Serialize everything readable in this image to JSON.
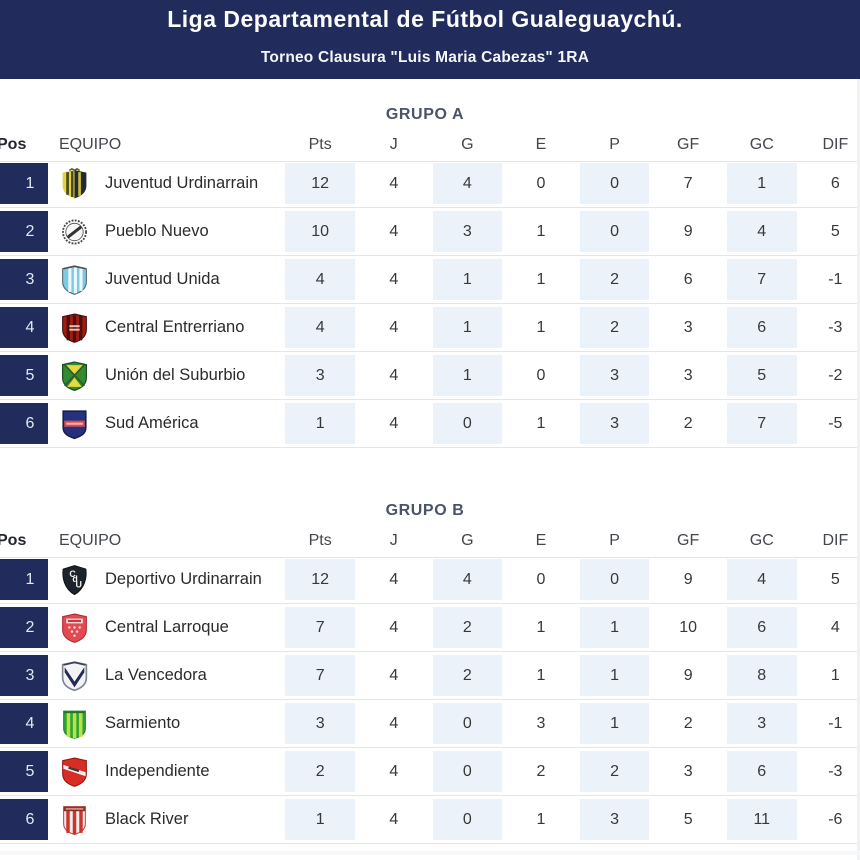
{
  "header": {
    "title": "Liga Departamental de Fútbol Gualeguaychú.",
    "subtitle": "Torneo Clausura \"Luis Maria Cabezas\" 1RA"
  },
  "columns": {
    "pos": "Pos",
    "equipo": "EQUIPO",
    "pts": "Pts",
    "j": "J",
    "g": "G",
    "e": "E",
    "p": "P",
    "gf": "GF",
    "gc": "GC",
    "dif": "DIF"
  },
  "colors": {
    "band_navy": "#212c5c",
    "pos_cell_navy": "#212c5c",
    "column_tint": "#ebf2f9",
    "hairline": "#e4e5e7",
    "group_title_text": "#4b5367"
  },
  "sections": [
    {
      "title": "GRUPO A",
      "rows": [
        {
          "pos": "1",
          "team": "Juventud Urdinarrain",
          "badge": "juventud-urdinarrain",
          "pts": "12",
          "j": "4",
          "g": "4",
          "e": "0",
          "p": "0",
          "gf": "7",
          "gc": "1",
          "dif": "6"
        },
        {
          "pos": "2",
          "team": "Pueblo Nuevo",
          "badge": "pueblo-nuevo",
          "pts": "10",
          "j": "4",
          "g": "3",
          "e": "1",
          "p": "0",
          "gf": "9",
          "gc": "4",
          "dif": "5"
        },
        {
          "pos": "3",
          "team": "Juventud Unida",
          "badge": "juventud-unida",
          "pts": "4",
          "j": "4",
          "g": "1",
          "e": "1",
          "p": "2",
          "gf": "6",
          "gc": "7",
          "dif": "-1"
        },
        {
          "pos": "4",
          "team": "Central Entrerriano",
          "badge": "central-entrerriano",
          "pts": "4",
          "j": "4",
          "g": "1",
          "e": "1",
          "p": "2",
          "gf": "3",
          "gc": "6",
          "dif": "-3"
        },
        {
          "pos": "5",
          "team": "Unión del Suburbio",
          "badge": "union-del-suburbio",
          "pts": "3",
          "j": "4",
          "g": "1",
          "e": "0",
          "p": "3",
          "gf": "3",
          "gc": "5",
          "dif": "-2"
        },
        {
          "pos": "6",
          "team": "Sud América",
          "badge": "sud-america",
          "pts": "1",
          "j": "4",
          "g": "0",
          "e": "1",
          "p": "3",
          "gf": "2",
          "gc": "7",
          "dif": "-5"
        }
      ]
    },
    {
      "title": "GRUPO B",
      "rows": [
        {
          "pos": "1",
          "team": "Deportivo Urdinarrain",
          "badge": "deportivo-urdinarrain",
          "pts": "12",
          "j": "4",
          "g": "4",
          "e": "0",
          "p": "0",
          "gf": "9",
          "gc": "4",
          "dif": "5"
        },
        {
          "pos": "2",
          "team": "Central Larroque",
          "badge": "central-larroque",
          "pts": "7",
          "j": "4",
          "g": "2",
          "e": "1",
          "p": "1",
          "gf": "10",
          "gc": "6",
          "dif": "4"
        },
        {
          "pos": "3",
          "team": "La Vencedora",
          "badge": "la-vencedora",
          "pts": "7",
          "j": "4",
          "g": "2",
          "e": "1",
          "p": "1",
          "gf": "9",
          "gc": "8",
          "dif": "1"
        },
        {
          "pos": "4",
          "team": "Sarmiento",
          "badge": "sarmiento",
          "pts": "3",
          "j": "4",
          "g": "0",
          "e": "3",
          "p": "1",
          "gf": "2",
          "gc": "3",
          "dif": "-1"
        },
        {
          "pos": "5",
          "team": "Independiente",
          "badge": "independiente",
          "pts": "2",
          "j": "4",
          "g": "0",
          "e": "2",
          "p": "2",
          "gf": "3",
          "gc": "6",
          "dif": "-3"
        },
        {
          "pos": "6",
          "team": "Black River",
          "badge": "black-river",
          "pts": "1",
          "j": "4",
          "g": "0",
          "e": "1",
          "p": "3",
          "gf": "5",
          "gc": "11",
          "dif": "-6"
        }
      ]
    }
  ]
}
